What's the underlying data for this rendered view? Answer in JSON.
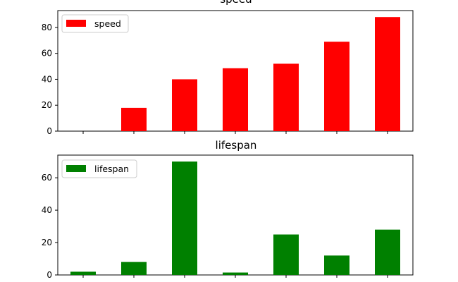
{
  "chart_data": [
    {
      "type": "bar",
      "title": "speed",
      "categories": [
        "",
        "",
        "",
        "",
        "",
        "",
        ""
      ],
      "series": [
        {
          "name": "speed",
          "color": "#ff0000",
          "values": [
            0,
            18,
            40,
            48.5,
            52,
            69,
            88
          ]
        }
      ],
      "ylim": [
        0,
        93
      ],
      "yticks": [
        0,
        20,
        40,
        60,
        80
      ],
      "grid": false,
      "legend": "top-left"
    },
    {
      "type": "bar",
      "title": "lifespan",
      "categories": [
        "",
        "",
        "",
        "",
        "",
        "",
        ""
      ],
      "series": [
        {
          "name": "lifespan",
          "color": "#008000",
          "values": [
            2,
            8,
            70,
            1.5,
            25,
            12,
            28
          ]
        }
      ],
      "ylim": [
        0,
        74
      ],
      "yticks": [
        0,
        20,
        40,
        60
      ],
      "grid": false,
      "legend": "top-left"
    }
  ]
}
